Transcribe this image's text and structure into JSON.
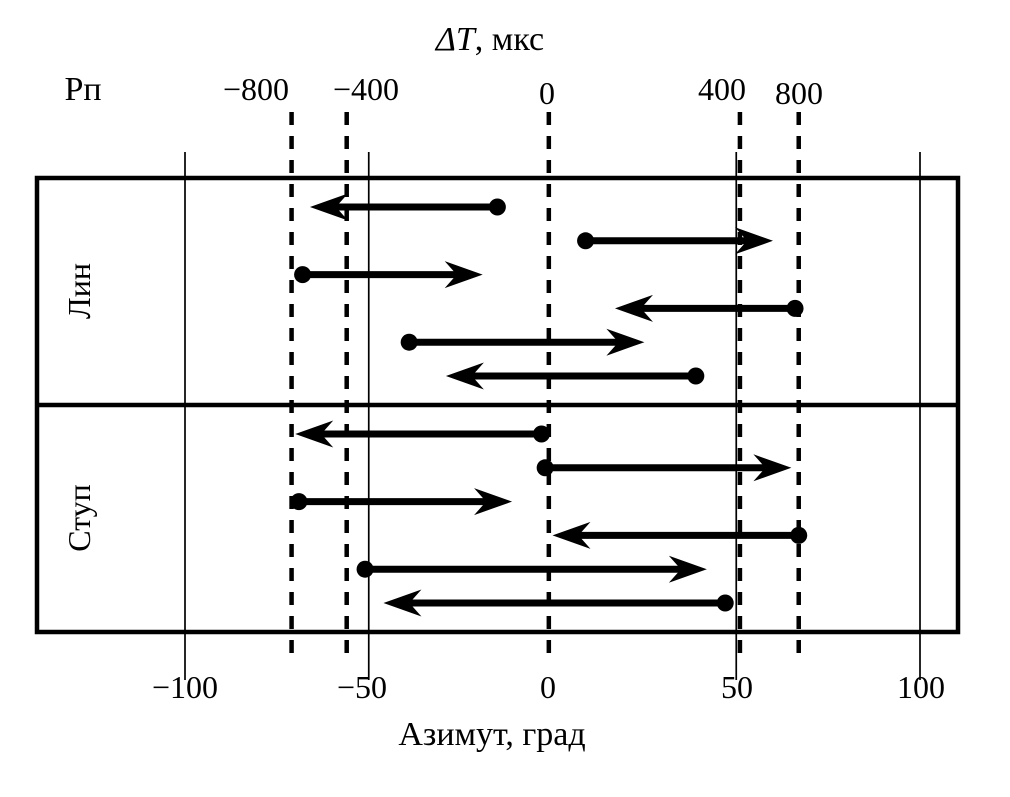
{
  "figure": {
    "row_axis_label": "Рп"
  },
  "chart_data": {
    "type": "arrow-plot",
    "description": "Two-row panel of horizontal arrows (dot = start, arrowhead = end) plotted against azimuth; dashed vertical lines mark time-delay levels",
    "delta_t_axis": {
      "title_var": "ΔT",
      "title_unit": ", мкс",
      "ticks": [
        {
          "label": "−800",
          "value": -800,
          "line_az": -71
        },
        {
          "label": "−400",
          "value": -400,
          "line_az": -56
        },
        {
          "label": "0",
          "value": 0,
          "line_az": -1
        },
        {
          "label": "400",
          "value": 400,
          "line_az": 51
        },
        {
          "label": "800",
          "value": 800,
          "line_az": 67
        }
      ]
    },
    "azimuth_axis": {
      "title": "Азимут, град",
      "range": [
        -140,
        111
      ],
      "ticks": [
        {
          "label": "−100",
          "value": -100
        },
        {
          "label": "−50",
          "value": -50
        },
        {
          "label": "0",
          "value": 0
        },
        {
          "label": "50",
          "value": 50
        },
        {
          "label": "100",
          "value": 100
        }
      ],
      "gridline_values": [
        -100,
        -50,
        50,
        100
      ]
    },
    "rows": [
      {
        "label": "Лин",
        "arrows": [
          {
            "from_az": -15,
            "to_az": -66
          },
          {
            "from_az": 9,
            "to_az": 60
          },
          {
            "from_az": -68,
            "to_az": -19
          },
          {
            "from_az": 66,
            "to_az": 17
          },
          {
            "from_az": -39,
            "to_az": 25
          },
          {
            "from_az": 39,
            "to_az": -29
          }
        ]
      },
      {
        "label": "Ступ",
        "arrows": [
          {
            "from_az": -3,
            "to_az": -70
          },
          {
            "from_az": -2,
            "to_az": 65
          },
          {
            "from_az": -69,
            "to_az": -11
          },
          {
            "from_az": 67,
            "to_az": 0
          },
          {
            "from_az": -51,
            "to_az": 42
          },
          {
            "from_az": 47,
            "to_az": -46
          }
        ]
      }
    ],
    "colors": {
      "ink": "#000000",
      "background": "#ffffff"
    }
  }
}
